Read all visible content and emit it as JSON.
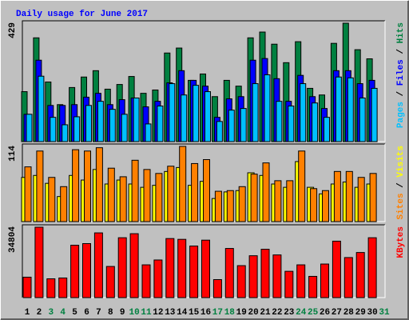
{
  "chart_data": {
    "type": "bar",
    "title": "Daily usage for June 2017",
    "legend_separator": " / ",
    "categories": [
      "1",
      "2",
      "3",
      "4",
      "5",
      "6",
      "7",
      "8",
      "9",
      "10",
      "11",
      "12",
      "13",
      "14",
      "15",
      "16",
      "17",
      "18",
      "19",
      "20",
      "21",
      "22",
      "23",
      "24",
      "25",
      "26",
      "27",
      "28",
      "29",
      "30",
      "31"
    ],
    "category_colors": [
      "#000000",
      "#000000",
      "#008040",
      "#008040",
      "#000000",
      "#000000",
      "#000000",
      "#000000",
      "#000000",
      "#008040",
      "#008040",
      "#000000",
      "#000000",
      "#000000",
      "#000000",
      "#000000",
      "#008040",
      "#008040",
      "#000000",
      "#000000",
      "#000000",
      "#000000",
      "#000000",
      "#008040",
      "#008040",
      "#000000",
      "#000000",
      "#000000",
      "#000000",
      "#000000",
      "#008040"
    ],
    "panels": [
      {
        "ylim": [
          0,
          429
        ],
        "yticks": [
          429
        ],
        "series": [
          {
            "name": "Hits",
            "color": "#008040",
            "values": [
              181,
              376,
              216,
              134,
              196,
              234,
              257,
              190,
              207,
              236,
              175,
              187,
              321,
              339,
              222,
              245,
              163,
              222,
              201,
              376,
              397,
              353,
              286,
              362,
              193,
              169,
              356,
              429,
              333,
              300,
              null
            ]
          },
          {
            "name": "Files",
            "color": "#0000ff",
            "values": [
              99,
              295,
              131,
              131,
              134,
              161,
              175,
              134,
              152,
              158,
              126,
              146,
              213,
              257,
              222,
              201,
              88,
              155,
              163,
              295,
              301,
              228,
              146,
              240,
              163,
              120,
              257,
              257,
              210,
              222,
              null
            ]
          },
          {
            "name": "Pages",
            "color": "#00c0ff",
            "values": [
              99,
              237,
              88,
              61,
              90,
              131,
              146,
              117,
              99,
              158,
              64,
              129,
              210,
              169,
              204,
              181,
              73,
              114,
              120,
              210,
              242,
              146,
              129,
              210,
              140,
              88,
              234,
              231,
              158,
              193,
              null
            ]
          }
        ]
      },
      {
        "ylim": [
          0,
          114
        ],
        "yticks": [
          114
        ],
        "series": [
          {
            "name": "Visits",
            "color": "#ffff00",
            "values": [
              67,
              70,
              58,
              38,
              70,
              63,
              79,
              57,
              63,
              57,
              52,
              55,
              76,
              82,
              55,
              61,
              35,
              45,
              47,
              74,
              70,
              57,
              52,
              91,
              52,
              42,
              57,
              60,
              52,
              57,
              null
            ]
          },
          {
            "name": "Sites",
            "color": "#ff8000",
            "values": [
              83,
              107,
              67,
              53,
              109,
              107,
              112,
              81,
              68,
              93,
              79,
              73,
              84,
              114,
              88,
              94,
              46,
              47,
              53,
              72,
              89,
              62,
              62,
              107,
              50,
              47,
              76,
              76,
              67,
              73,
              null
            ]
          }
        ]
      },
      {
        "ylim": [
          0,
          34804
        ],
        "yticks": [
          34804
        ],
        "series": [
          {
            "name": "KBytes",
            "color": "#ff0000",
            "values": [
              10100,
              34804,
              9300,
              9700,
              25900,
              26700,
              32000,
              15400,
              29600,
              31600,
              16200,
              18600,
              29200,
              28800,
              25500,
              28400,
              8900,
              24300,
              15800,
              20700,
              23900,
              21100,
              13000,
              16200,
              10500,
              16600,
              27900,
              19800,
              22300,
              29600,
              null
            ]
          }
        ]
      }
    ]
  }
}
